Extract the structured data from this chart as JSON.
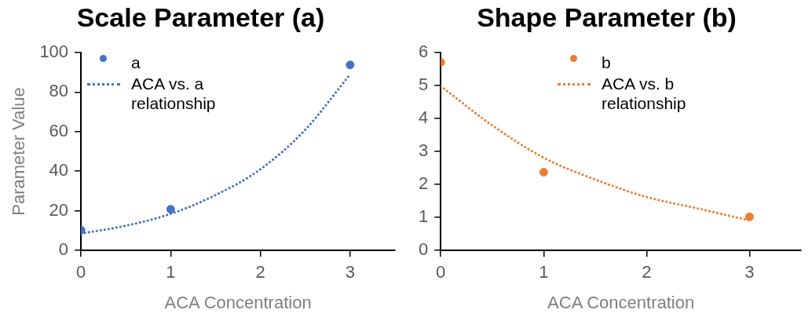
{
  "chart_data": [
    {
      "type": "scatter",
      "title": "Scale Parameter (a)",
      "xlabel": "ACA Concentration",
      "ylabel": "Parameter Value",
      "xlim": [
        0,
        3.5
      ],
      "xticks": [
        0,
        1,
        2,
        3
      ],
      "ylim": [
        0,
        100
      ],
      "yticks": [
        0,
        20,
        40,
        60,
        80,
        100
      ],
      "grid": false,
      "legend": "top left",
      "series": [
        {
          "name": "a",
          "type": "scatter",
          "marker": "circle",
          "color": "#4472c4",
          "x": [
            0,
            1,
            3
          ],
          "values": [
            10.3,
            20.8,
            93.7
          ]
        },
        {
          "name": "ACA vs. a relationship",
          "type": "line",
          "marker": "none",
          "line_style": "dotted",
          "color": "#4472c4",
          "x": [
            0,
            0.5,
            1,
            1.5,
            2,
            2.5,
            3
          ],
          "values": [
            8.5,
            12.5,
            18.5,
            28,
            41,
            61,
            89
          ]
        }
      ]
    },
    {
      "type": "scatter",
      "title": "Shape Parameter (b)",
      "xlabel": "ACA Concentration",
      "xlim": [
        0,
        3.5
      ],
      "xticks": [
        0,
        1,
        2,
        3
      ],
      "ylim": [
        0,
        6
      ],
      "yticks": [
        0,
        1,
        2,
        3,
        4,
        5,
        6
      ],
      "grid": false,
      "legend": "top",
      "series": [
        {
          "name": "b",
          "type": "scatter",
          "marker": "circle",
          "color": "#ed7d31",
          "x": [
            0,
            1,
            3
          ],
          "values": [
            5.7,
            2.37,
            1.02
          ]
        },
        {
          "name": "ACA vs. b relationship",
          "type": "line",
          "marker": "none",
          "line_style": "dotted",
          "color": "#ed7d31",
          "x": [
            0,
            0.5,
            1,
            1.5,
            2,
            2.5,
            3
          ],
          "values": [
            4.98,
            3.79,
            2.81,
            2.15,
            1.62,
            1.27,
            0.91
          ]
        }
      ]
    }
  ]
}
